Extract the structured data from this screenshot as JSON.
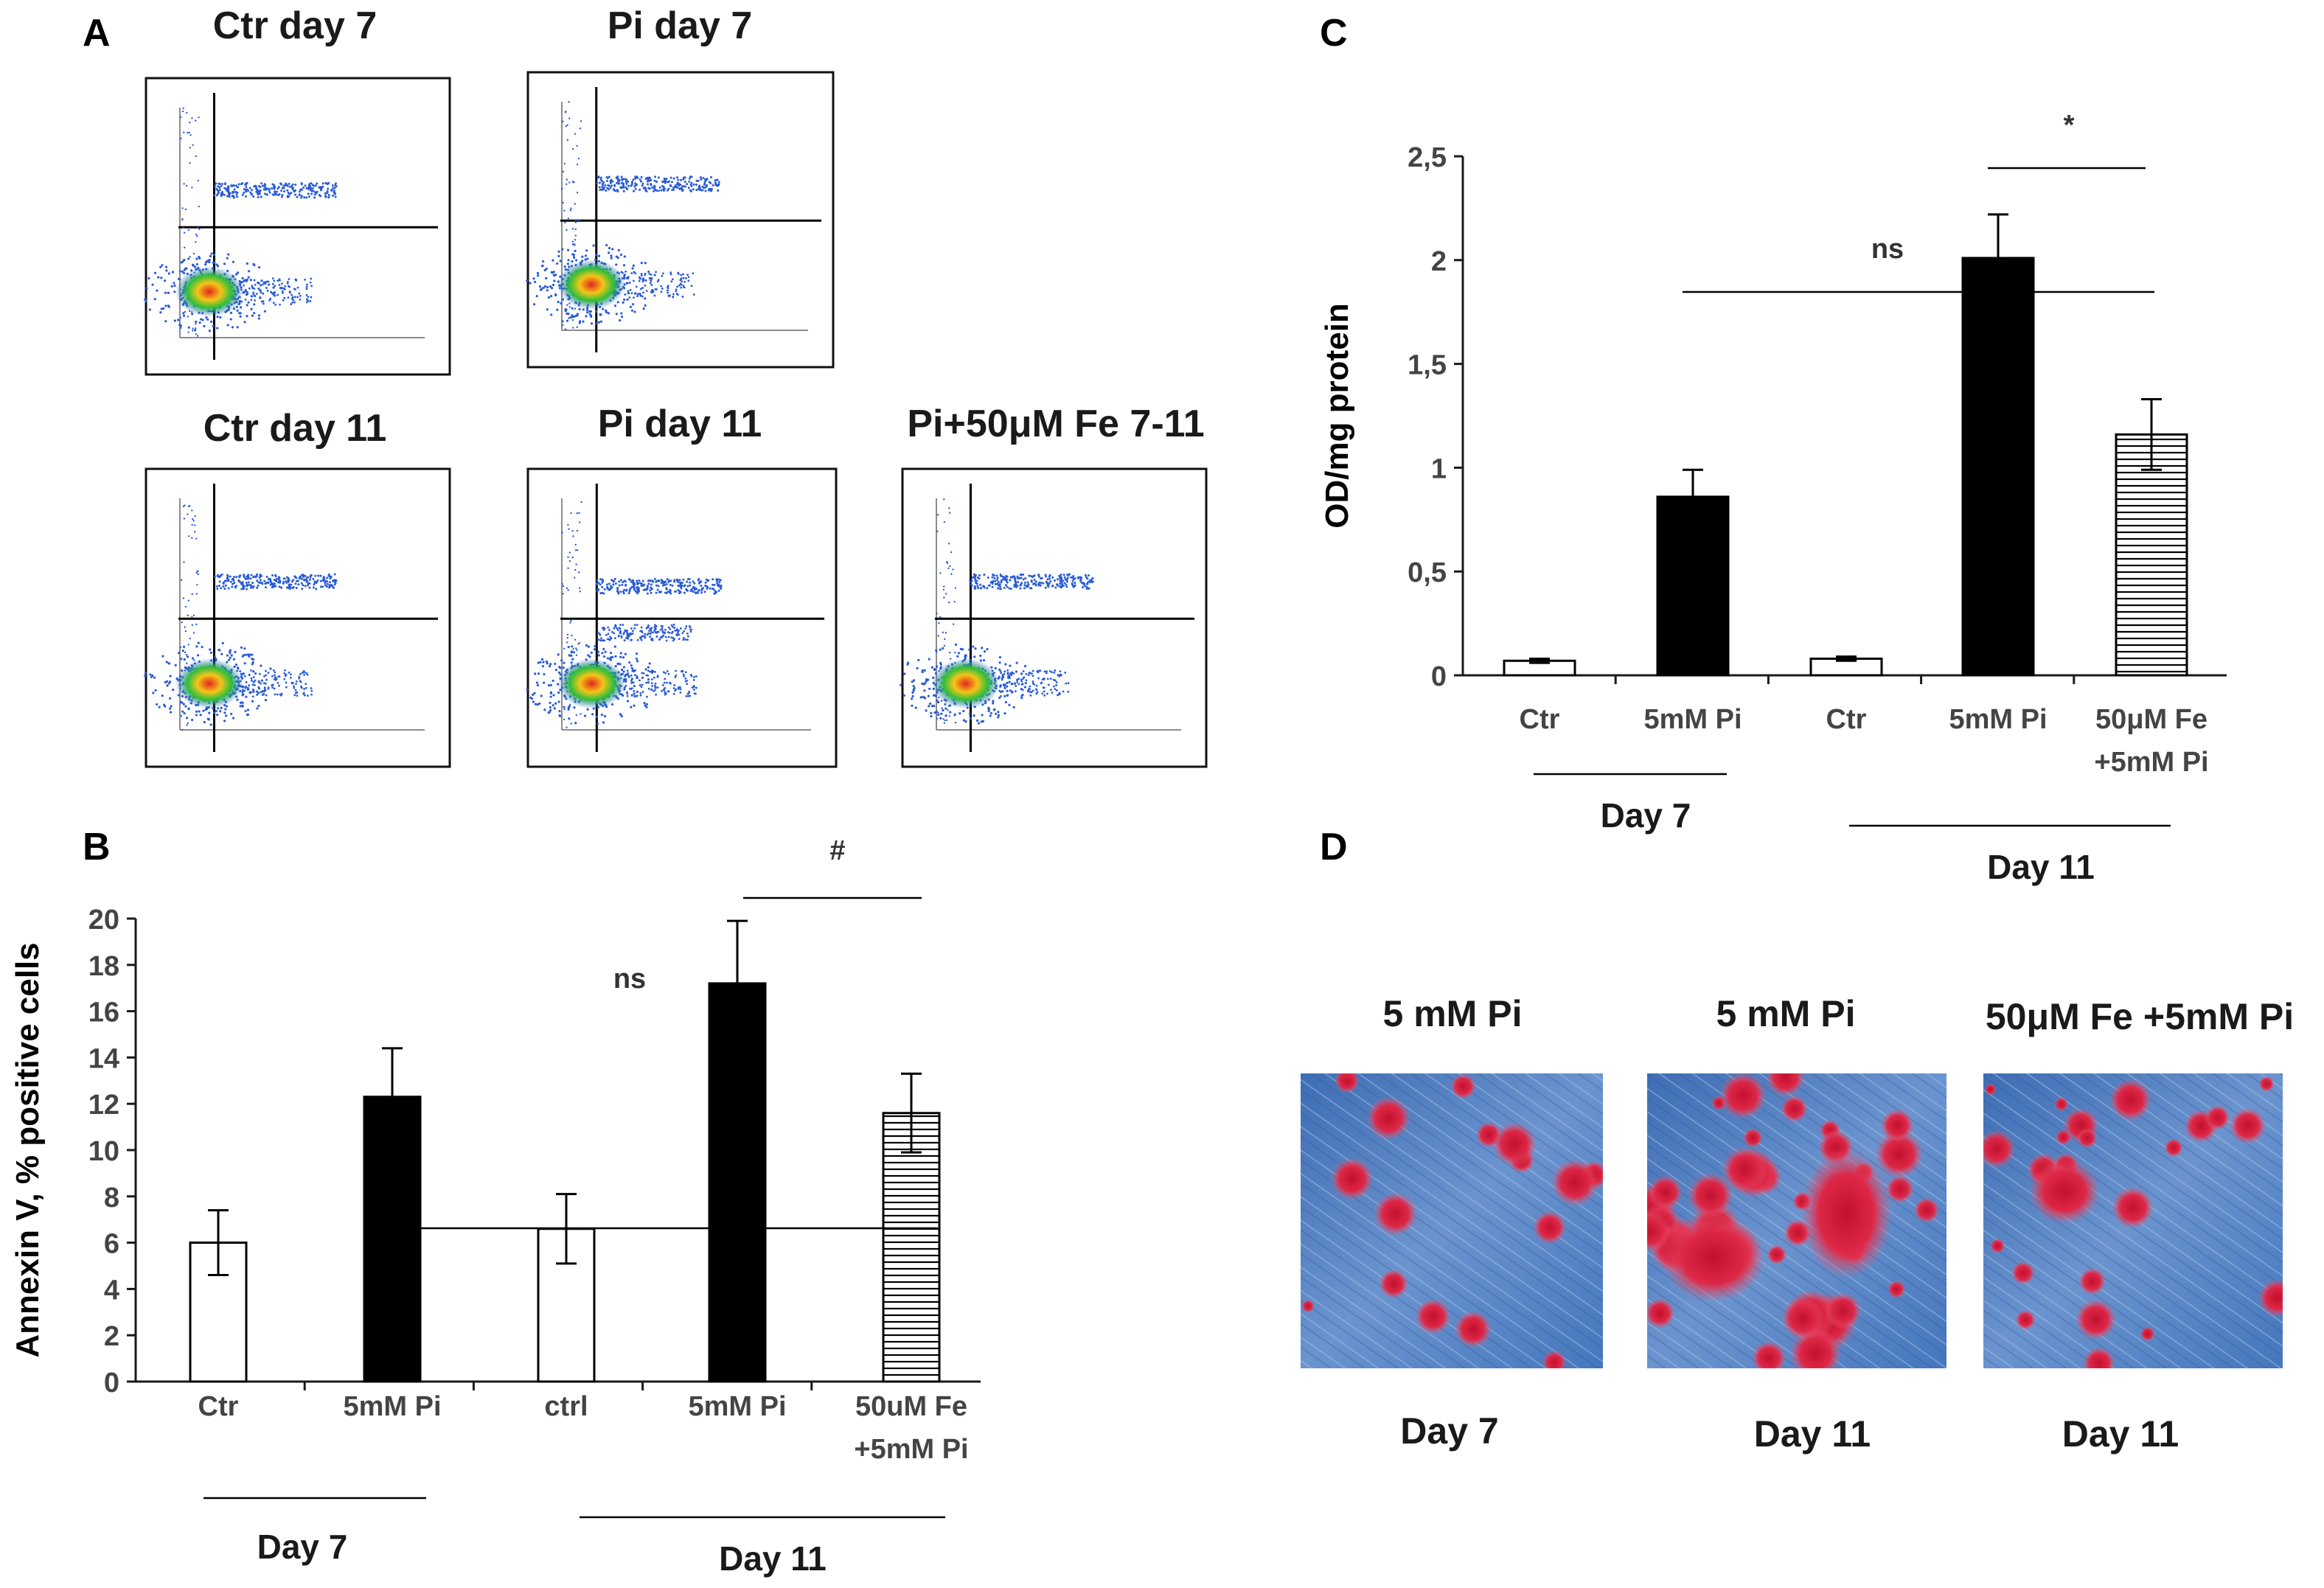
{
  "panel_labels": {
    "a": "A",
    "b": "B",
    "c": "C",
    "d": "D"
  },
  "flow": {
    "plots": [
      {
        "title": "Ctr day 7"
      },
      {
        "title": "Pi day 7"
      },
      {
        "title": "Ctr day 11"
      },
      {
        "title": "Pi day 11"
      },
      {
        "title": "Pi+50μM Fe 7-11"
      }
    ]
  },
  "chart_data": [
    {
      "id": "B",
      "type": "bar",
      "title": "",
      "xlabel": "",
      "ylabel": "Annexin V, % positive cells",
      "ylim": [
        0,
        20
      ],
      "yticks": [
        "0",
        "2",
        "4",
        "6",
        "8",
        "10",
        "12",
        "14",
        "16",
        "18",
        "20"
      ],
      "categories": [
        "Ctr",
        "5mM Pi",
        "ctrl",
        "5mM Pi",
        "50uM Fe\n+5mM Pi"
      ],
      "values": [
        6.0,
        12.3,
        6.6,
        17.2,
        11.6
      ],
      "errors": [
        1.4,
        2.1,
        1.5,
        2.7,
        1.7
      ],
      "fills": [
        "white",
        "black",
        "white",
        "black",
        "hatched"
      ],
      "groups": [
        {
          "label": "Day 7",
          "from": 0,
          "to": 1
        },
        {
          "label": "Day 11",
          "from": 2,
          "to": 4
        }
      ],
      "annotations": [
        {
          "text": "ns",
          "from": 1,
          "to": 4
        },
        {
          "text": "#",
          "from": 3,
          "to": 4
        }
      ]
    },
    {
      "id": "C",
      "type": "bar",
      "title": "",
      "xlabel": "",
      "ylabel": "OD/mg protein",
      "ylim": [
        0,
        2.5
      ],
      "yticks": [
        "0",
        "0,5",
        "1",
        "1,5",
        "2",
        "2,5"
      ],
      "categories": [
        "Ctr",
        "5mM Pi",
        "Ctr",
        "5mM Pi",
        "50μM Fe\n+5mM Pi"
      ],
      "values": [
        0.07,
        0.86,
        0.08,
        2.01,
        1.16
      ],
      "errors": [
        0.01,
        0.13,
        0.01,
        0.21,
        0.17
      ],
      "fills": [
        "white",
        "black",
        "white",
        "black",
        "hatched"
      ],
      "groups": [
        {
          "label": "Day 7",
          "from": 0,
          "to": 1
        },
        {
          "label": "Day 11",
          "from": 2,
          "to": 4
        }
      ],
      "annotations": [
        {
          "text": "ns",
          "from": 1,
          "to": 4
        },
        {
          "text": "*",
          "from": 3,
          "to": 4
        }
      ]
    }
  ],
  "micrographs": [
    {
      "top_label": "5 mM Pi",
      "bottom_label": "Day 7"
    },
    {
      "top_label": "5 mM Pi",
      "bottom_label": "Day 11"
    },
    {
      "top_label": "50μM Fe +5mM Pi",
      "bottom_label": "Day 11"
    }
  ],
  "colors": {
    "axis": "#1a1a1a",
    "bar_dark": "#000000",
    "bar_light": "#ffffff",
    "dot_blue": "#2a5bd7",
    "stain_red": "#d81f3c",
    "tissue_blue": "#4f7fc0"
  }
}
